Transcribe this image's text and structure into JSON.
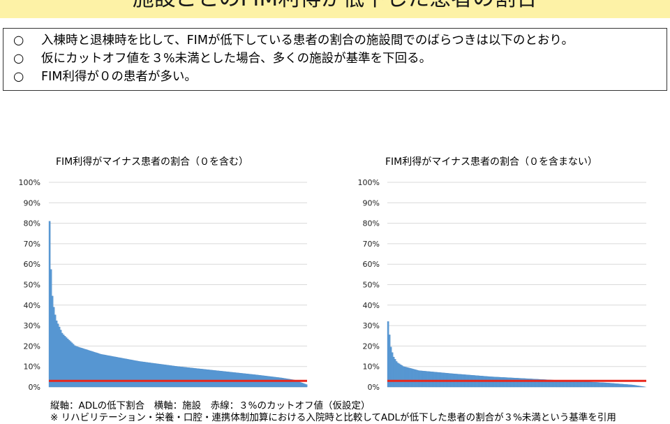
{
  "header": {
    "title": "施設ごとのFIM利得が低下した患者の割合"
  },
  "bullets": [
    {
      "mark": "○",
      "text": "入棟時と退棟時を比して、FIMが低下している患者の割合の施設間でのばらつきは以下のとおり。"
    },
    {
      "mark": "○",
      "text": "仮にカットオフ値を３%未満とした場合、多くの施設が基準を下回る。"
    },
    {
      "mark": "○",
      "text": "FIM利得が０の患者が多い。"
    }
  ],
  "chart_data": [
    {
      "type": "bar",
      "title": "FIM利得がマイナス患者の割合（０を含む）",
      "ylim": [
        0,
        100
      ],
      "yticks": [
        "0%",
        "10%",
        "20%",
        "30%",
        "40%",
        "50%",
        "60%",
        "70%",
        "80%",
        "90%",
        "100%"
      ],
      "grid": true,
      "bar_color": "#5b9bd5",
      "cutoff_color": "#e8261c",
      "cutoff": 3,
      "profile": [
        [
          0,
          81
        ],
        [
          0.006,
          55
        ],
        [
          0.012,
          42
        ],
        [
          0.025,
          33
        ],
        [
          0.05,
          26
        ],
        [
          0.1,
          20
        ],
        [
          0.2,
          16
        ],
        [
          0.35,
          12.5
        ],
        [
          0.5,
          10
        ],
        [
          0.65,
          8
        ],
        [
          0.8,
          6
        ],
        [
          0.9,
          4.5
        ],
        [
          0.95,
          3.5
        ],
        [
          1,
          1.2
        ]
      ]
    },
    {
      "type": "bar",
      "title": "FIM利得がマイナス患者の割合（０を含まない）",
      "ylim": [
        0,
        100
      ],
      "yticks": [
        "0%",
        "10%",
        "20%",
        "30%",
        "40%",
        "50%",
        "60%",
        "70%",
        "80%",
        "90%",
        "100%"
      ],
      "grid": true,
      "bar_color": "#5b9bd5",
      "cutoff_color": "#e8261c",
      "cutoff": 3,
      "profile": [
        [
          0,
          32
        ],
        [
          0.01,
          20
        ],
        [
          0.02,
          15
        ],
        [
          0.035,
          12
        ],
        [
          0.06,
          10
        ],
        [
          0.12,
          8
        ],
        [
          0.25,
          6.5
        ],
        [
          0.4,
          5
        ],
        [
          0.55,
          4
        ],
        [
          0.7,
          3
        ],
        [
          0.85,
          2
        ],
        [
          0.95,
          1
        ],
        [
          1,
          0
        ]
      ]
    }
  ],
  "footer": {
    "line1": "縦軸：ADLの低下割合　横軸：施設　赤線：３%のカットオフ値（仮設定）",
    "line2": "※ リハビリテーション・栄養・口腔・連携体制加算における入院時と比較してADLが低下した患者の割合が３%未満という基準を引用"
  }
}
